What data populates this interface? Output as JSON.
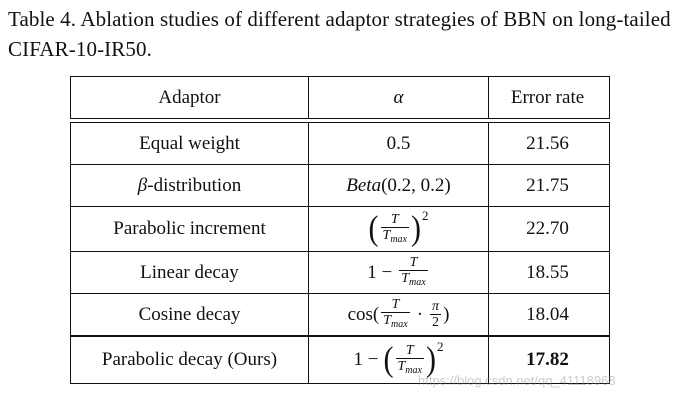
{
  "caption": "Table 4. Ablation studies of different adaptor strategies of BBN on long-tailed CIFAR-10-IR50.",
  "headers": {
    "adaptor": "Adaptor",
    "alpha": "α",
    "error": "Error rate"
  },
  "rows": [
    {
      "adaptor": "Equal weight",
      "alpha": "0.5",
      "error": "21.56"
    },
    {
      "adaptor_prefix": "β",
      "adaptor": "-distribution",
      "alpha_func": "Beta",
      "alpha_args": "(0.2, 0.2)",
      "error": "21.75"
    },
    {
      "adaptor": "Parabolic increment",
      "error": "22.70"
    },
    {
      "adaptor": "Linear decay",
      "alpha_lead": "1 −",
      "error": "18.55"
    },
    {
      "adaptor": "Cosine decay",
      "alpha_lead": "cos(",
      "alpha_tail": ")",
      "pi": "π",
      "two": "2",
      "dot": "·",
      "error": "18.04"
    }
  ],
  "last_row": {
    "adaptor": "Parabolic decay (Ours)",
    "alpha_lead": "1 −",
    "error": "17.82"
  },
  "math": {
    "T": "T",
    "Tmax_base": "T",
    "Tmax_sub": "max",
    "square": "2",
    "lparen": "(",
    "rparen": ")"
  },
  "watermark": "https://blog.csdn.net/qq_41118968"
}
